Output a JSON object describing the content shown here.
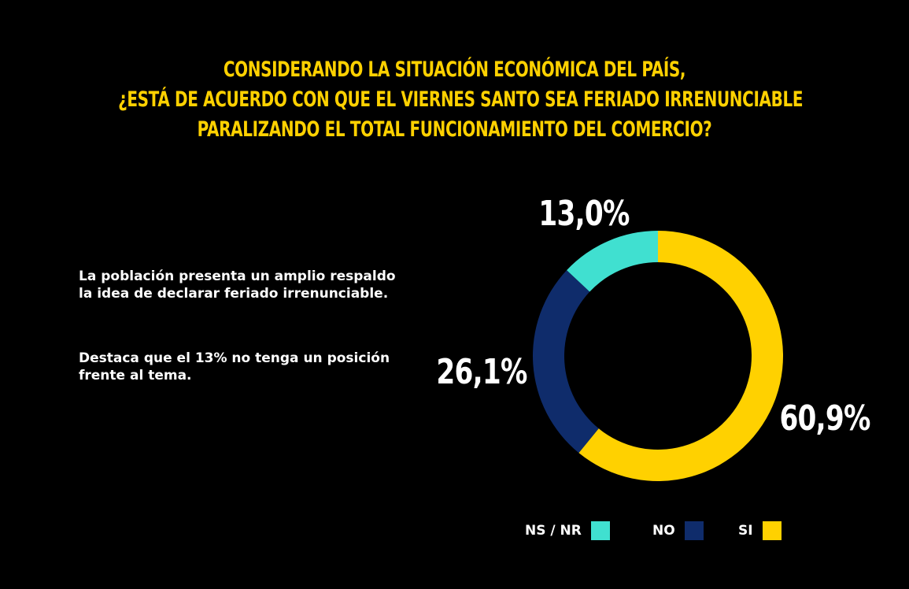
{
  "title_lines": [
    "CONSIDERANDO LA SITUACIÓN ECONÓMICA DEL PAÍS,",
    "¿ESTÁ DE ACUERDO CON QUE EL VIERNES SANTO SEA FERIADO IRRENUNCIABLE",
    "PARALIZANDO EL TOTAL FUNCIONAMIENTO DEL COMERCIO?"
  ],
  "insights": [
    "La población presenta un amplio respaldo la idea de declarar feriado irrenunciable.",
    "Destaca que el 13% no tenga un posición frente al tema."
  ],
  "colors": {
    "title": "#FFD100",
    "background": "#000000",
    "text": "#FFFFFF"
  },
  "chart_data": {
    "type": "pie",
    "donut": true,
    "categories": [
      "NS / NR",
      "NO",
      "SI"
    ],
    "values": [
      13.0,
      26.1,
      60.9
    ],
    "value_labels": [
      "13,0%",
      "26,1%",
      "60,9%"
    ],
    "colors": [
      "#40E0D0",
      "#0F2C6B",
      "#FFD100"
    ],
    "legend_position": "bottom-right"
  }
}
